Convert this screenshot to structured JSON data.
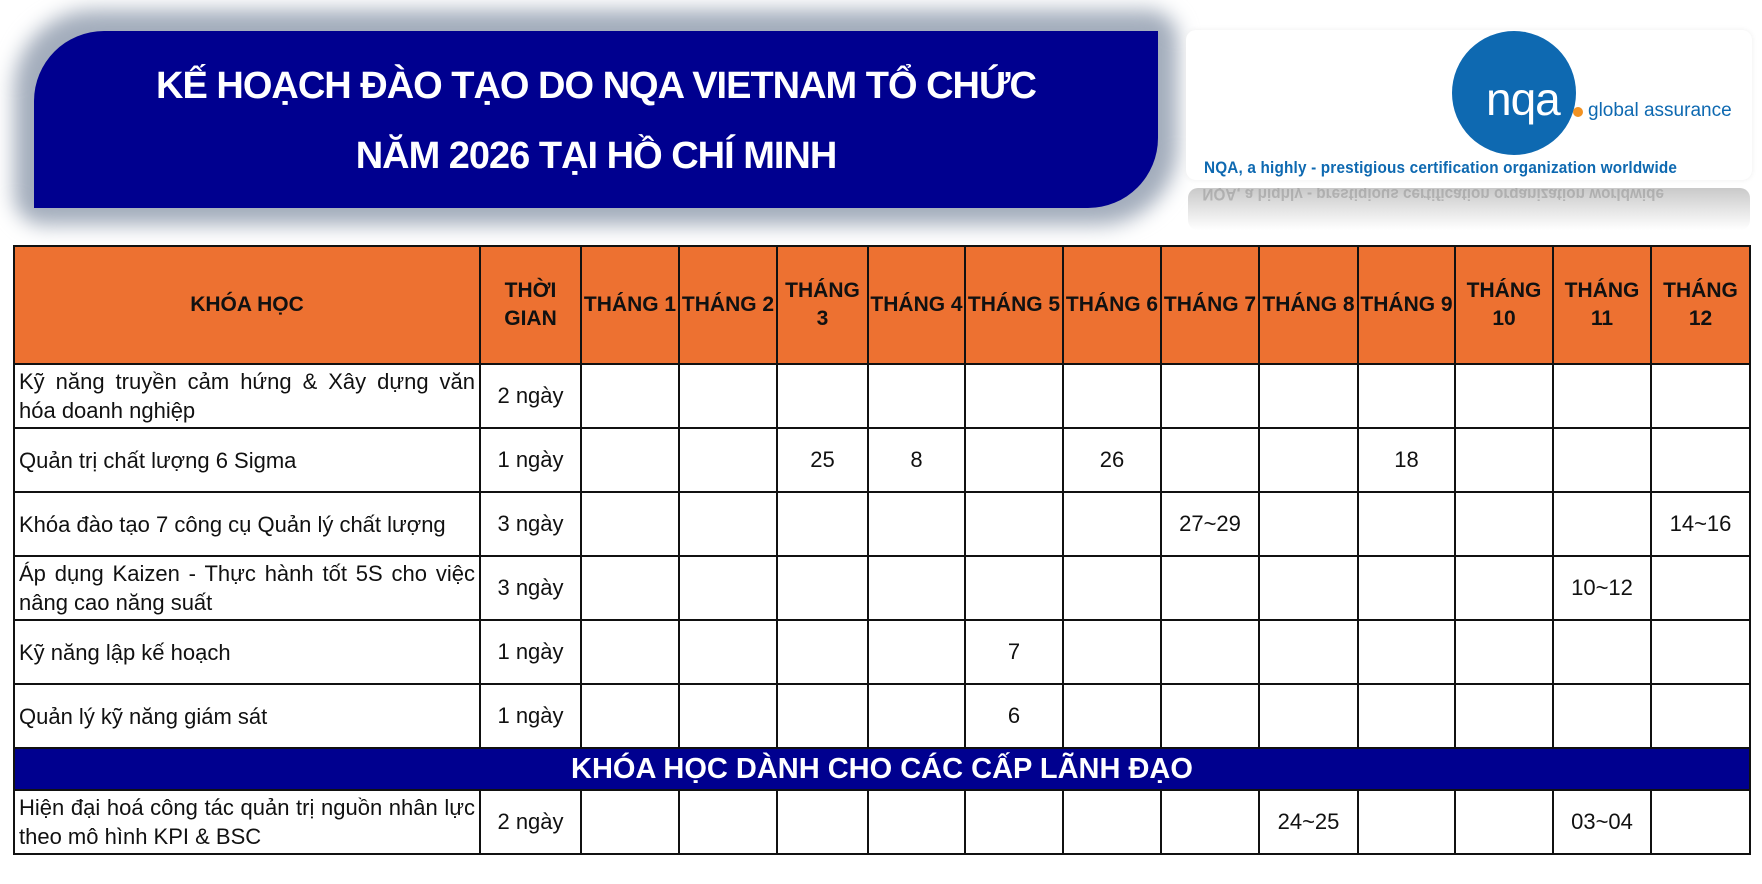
{
  "header": {
    "title_line1": "KẾ HOẠCH ĐÀO TẠO DO NQA VIETNAM TỔ CHỨC",
    "title_line2": "NĂM 2026 TẠI HỒ CHÍ MINH"
  },
  "logo": {
    "brand": "nqa",
    "subtitle": "global assurance",
    "tagline": "NQA, a highly - prestigious certification organization worldwide",
    "colors": {
      "blue": "#0e69b1",
      "orange": "#f29222"
    }
  },
  "colors": {
    "header_orange": "#ed7131",
    "navy": "#00008f"
  },
  "table": {
    "headers": [
      "KHÓA HỌC",
      "THỜI GIAN",
      "THÁNG 1",
      "THÁNG 2",
      "THÁNG 3",
      "THÁNG 4",
      "THÁNG 5",
      "THÁNG 6",
      "THÁNG 7",
      "THÁNG 8",
      "THÁNG 9",
      "THÁNG 10",
      "THÁNG 11",
      "THÁNG 12"
    ],
    "rows": [
      {
        "course": "Kỹ năng truyền cảm hứng & Xây dựng văn hóa doanh nghiệp",
        "duration": "2 ngày",
        "months": [
          "",
          "",
          "",
          "",
          "",
          "",
          "",
          "",
          "",
          "",
          "",
          ""
        ]
      },
      {
        "course": "Quản trị chất lượng 6 Sigma",
        "duration": "1 ngày",
        "months": [
          "",
          "",
          "25",
          "8",
          "",
          "26",
          "",
          "",
          "18",
          "",
          "",
          ""
        ]
      },
      {
        "course": "Khóa đào tạo 7 công cụ Quản lý chất lượng",
        "duration": "3 ngày",
        "months": [
          "",
          "",
          "",
          "",
          "",
          "",
          "27~29",
          "",
          "",
          "",
          "",
          "14~16"
        ]
      },
      {
        "course": "Áp dụng Kaizen - Thực hành tốt 5S cho việc nâng cao năng suất",
        "duration": "3 ngày",
        "months": [
          "",
          "",
          "",
          "",
          "",
          "",
          "",
          "",
          "",
          "",
          "10~12",
          ""
        ]
      },
      {
        "course": "Kỹ năng lập kế hoạch",
        "duration": "1 ngày",
        "months": [
          "",
          "",
          "",
          "",
          "7",
          "",
          "",
          "",
          "",
          "",
          "",
          ""
        ]
      },
      {
        "course": "Quản lý kỹ năng giám sát",
        "duration": "1 ngày",
        "months": [
          "",
          "",
          "",
          "",
          "6",
          "",
          "",
          "",
          "",
          "",
          "",
          ""
        ]
      }
    ],
    "section_title": "KHÓA HỌC DÀNH CHO CÁC CẤP LÃNH ĐẠO",
    "leader_rows": [
      {
        "course": "Hiện đại hoá công tác quản trị nguồn nhân lực theo mô hình KPI & BSC",
        "duration": "2 ngày",
        "months": [
          "",
          "",
          "",
          "",
          "",
          "",
          "",
          "24~25",
          "",
          "",
          "03~04",
          ""
        ]
      }
    ]
  }
}
